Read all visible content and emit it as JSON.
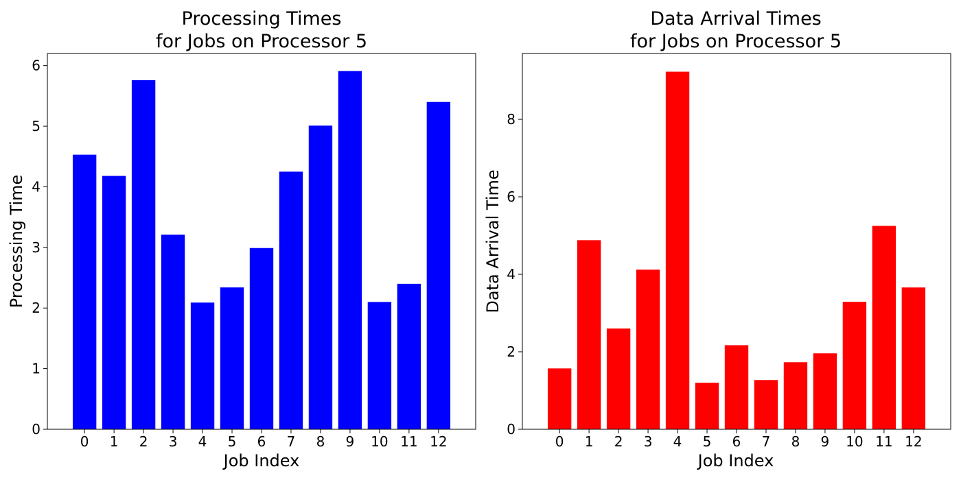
{
  "chart_data": [
    {
      "type": "bar",
      "title_lines": [
        "Processing Times",
        "for Jobs on Processor 5"
      ],
      "xlabel": "Job Index",
      "ylabel": "Processing Time",
      "categories": [
        "0",
        "1",
        "2",
        "3",
        "4",
        "5",
        "6",
        "7",
        "8",
        "9",
        "10",
        "11",
        "12"
      ],
      "values": [
        4.53,
        4.18,
        5.76,
        3.21,
        2.09,
        2.34,
        2.99,
        4.25,
        5.01,
        5.91,
        2.1,
        2.4,
        5.4
      ],
      "ylim": [
        0,
        6.2
      ],
      "yticks": [
        0,
        1,
        2,
        3,
        4,
        5,
        6
      ],
      "color": "#0000ff",
      "grid": false,
      "legend": "none"
    },
    {
      "type": "bar",
      "title_lines": [
        "Data Arrival Times",
        "for Jobs on Processor 5"
      ],
      "xlabel": "Job Index",
      "ylabel": "Data Arrival Time",
      "categories": [
        "0",
        "1",
        "2",
        "3",
        "4",
        "5",
        "6",
        "7",
        "8",
        "9",
        "10",
        "11",
        "12"
      ],
      "values": [
        1.57,
        4.88,
        2.6,
        4.12,
        9.23,
        1.2,
        2.17,
        1.27,
        1.73,
        1.96,
        3.29,
        5.25,
        3.66
      ],
      "ylim": [
        0,
        9.7
      ],
      "yticks": [
        0,
        2,
        4,
        6,
        8
      ],
      "color": "#ff0000",
      "grid": false,
      "legend": "none"
    }
  ]
}
